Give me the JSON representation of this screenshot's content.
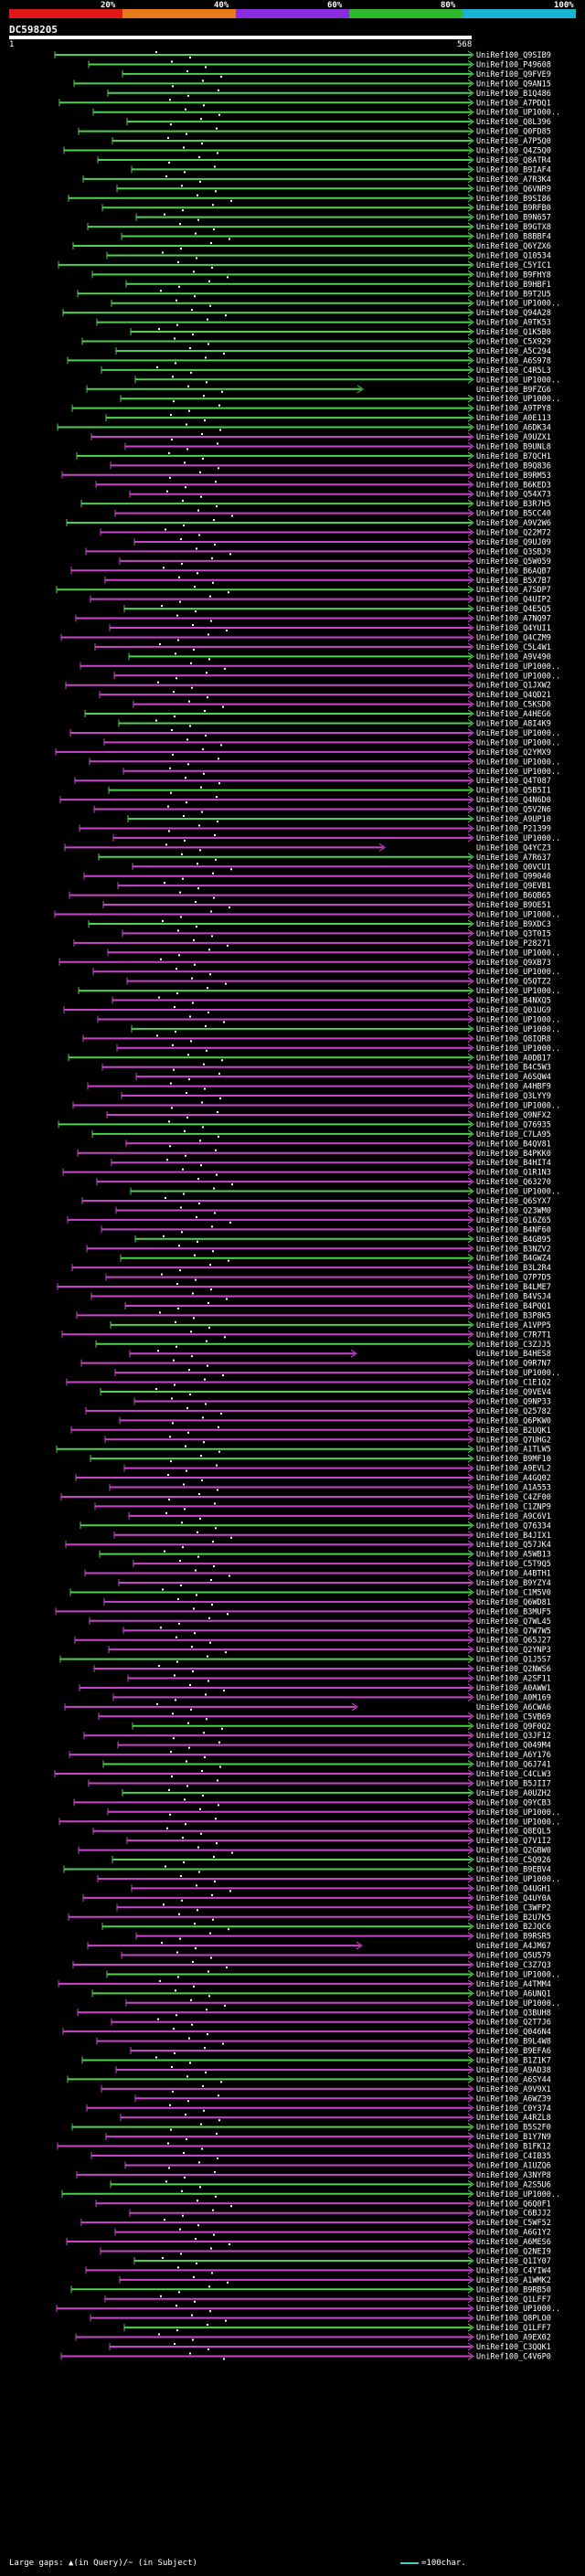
{
  "legend": {
    "colors": [
      "#e01818",
      "#e87a1a",
      "#8a2be2",
      "#2db82d",
      "#19b4d2"
    ],
    "labels": [
      "20%",
      "40%",
      "60%",
      "80%",
      "100%"
    ]
  },
  "query": {
    "name": "DC598205",
    "start": "1",
    "end": "568"
  },
  "footer": {
    "text": "Large gaps: ▲(in Query)/~ (in Subject)",
    "scale": "=100char."
  },
  "hits": [
    "UniRef100_Q9SIB9",
    "UniRef100_P49608",
    "UniRef100_Q9FVE9",
    "UniRef100_Q9AN15",
    "UniRef100_B1Q486",
    "UniRef100_A7PDQ1",
    "UniRef100_UP1000..",
    "UniRef100_Q8L396",
    "UniRef100_Q0FD85",
    "UniRef100_A7P5Q0",
    "UniRef100_Q4Z5Q0",
    "UniRef100_Q8ATR4",
    "UniRef100_B9IAF4",
    "UniRef100_A7R3K4",
    "UniRef100_Q6VNR9",
    "UniRef100_B9SI86",
    "UniRef100_B9RFB0",
    "UniRef100_B9N657",
    "UniRef100_B9GTX8",
    "UniRef100_B8BBF4",
    "UniRef100_Q6YZX6",
    "UniRef100_Q10534",
    "UniRef100_C5YIC1",
    "UniRef100_B9FHY8",
    "UniRef100_B9HBF1",
    "UniRef100_B9T2U5",
    "UniRef100_UP1000..",
    "UniRef100_Q94A28",
    "UniRef100_A9TK53",
    "UniRef100_Q1K5B0",
    "UniRef100_C5X929",
    "UniRef100_A5C294",
    "UniRef100_A6S978",
    "UniRef100_C4R5L3",
    "UniRef100_UP1000..",
    "UniRef100_B9FZG6",
    "UniRef100_UP1000..",
    "UniRef100_A9TPY8",
    "UniRef100_A0E113",
    "UniRef100_A6DK34",
    "UniRef100_A9UZX1",
    "UniRef100_B9UNL8",
    "UniRef100_B7QCH1",
    "UniRef100_B9Q836",
    "UniRef100_B9RM53",
    "UniRef100_B6KED3",
    "UniRef100_Q54X73",
    "UniRef100_B3R7H5",
    "UniRef100_B5CC40",
    "UniRef100_A9V2W6",
    "UniRef100_Q22M72",
    "UniRef100_Q9UJ09",
    "UniRef100_Q3SBJ9",
    "UniRef100_Q5W059",
    "UniRef100_B6AQB7",
    "UniRef100_B5X7B7",
    "UniRef100_A7SDP7",
    "UniRef100_Q4UIP2",
    "UniRef100_Q4E5Q5",
    "UniRef100_A7NQ97",
    "UniRef100_Q4YUI1",
    "UniRef100_Q4CZM9",
    "UniRef100_C5L4W1",
    "UniRef100_A9V490",
    "UniRef100_UP1000..",
    "UniRef100_UP1000..",
    "UniRef100_Q1JXW2",
    "UniRef100_Q4QD21",
    "UniRef100_C5KSD0",
    "UniRef100_A4HEG6",
    "UniRef100_A8I4K9",
    "UniRef100_UP1000..",
    "UniRef100_UP1000..",
    "UniRef100_Q2YMX9",
    "UniRef100_UP1000..",
    "UniRef100_UP1000..",
    "UniRef100_Q4T087",
    "UniRef100_Q5B5I1",
    "UniRef100_Q4N6D0",
    "UniRef100_Q5V2N6",
    "UniRef100_A9UP10",
    "UniRef100_P21399",
    "UniRef100_UP1000..",
    "UniRef100_Q4YCZ3",
    "UniRef100_A7R637",
    "UniRef100_Q0VCU1",
    "UniRef100_Q99040",
    "UniRef100_Q9EVB1",
    "UniRef100_B6QB65",
    "UniRef100_B9OE51",
    "UniRef100_UP1000..",
    "UniRef100_B9XDC3",
    "UniRef100_Q3T0I5",
    "UniRef100_P28271",
    "UniRef100_UP1000..",
    "UniRef100_Q9XB73",
    "UniRef100_UP1000..",
    "UniRef100_Q5QTZ2",
    "UniRef100_UP1000..",
    "UniRef100_B4NXQ5",
    "UniRef100_Q01UG9",
    "UniRef100_UP1000..",
    "UniRef100_UP1000..",
    "UniRef100_Q8IQR8",
    "UniRef100_UP1000..",
    "UniRef100_A0DB17",
    "UniRef100_B4C5W3",
    "UniRef100_A6SQW4",
    "UniRef100_A4HBF9",
    "UniRef100_Q3LYY9",
    "UniRef100_UP1000..",
    "UniRef100_Q9NFX2",
    "UniRef100_Q76935",
    "UniRef100_C7LA95",
    "UniRef100_B4QV81",
    "UniRef100_B4PKK0",
    "UniRef100_B4HIT4",
    "UniRef100_Q1R1N3",
    "UniRef100_Q63270",
    "UniRef100_UP1000..",
    "UniRef100_Q6SYX7",
    "UniRef100_Q23WM0",
    "UniRef100_Q16Z65",
    "UniRef100_B4NF60",
    "UniRef100_B4GB95",
    "UniRef100_B3NZV2",
    "UniRef100_B4GWZ4",
    "UniRef100_B3L2R4",
    "UniRef100_Q7P7D5",
    "UniRef100_B4LME7",
    "UniRef100_B4VSJ4",
    "UniRef100_B4PQQ1",
    "UniRef100_B3P8K5",
    "UniRef100_A1VPP5",
    "UniRef100_C7R7T1",
    "UniRef100_C3ZJJ5",
    "UniRef100_B4HES8",
    "UniRef100_Q9R7N7",
    "UniRef100_UP1000..",
    "UniRef100_C1E1Q2",
    "UniRef100_Q9VEV4",
    "UniRef100_Q9NP33",
    "UniRef100_Q25782",
    "UniRef100_Q6PKW0",
    "UniRef100_B2UQK1",
    "UniRef100_Q7UHG2",
    "UniRef100_A1TLW5",
    "UniRef100_B9MF10",
    "UniRef100_A9EVL2",
    "UniRef100_A4GQ02",
    "UniRef100_A1A553",
    "UniRef100_C4ZF00",
    "UniRef100_C1ZNP9",
    "UniRef100_A9C6V1",
    "UniRef100_Q76334",
    "UniRef100_B4JIX1",
    "UniRef100_Q57JK4",
    "UniRef100_A5WB13",
    "UniRef100_C5T9Q5",
    "UniRef100_A4BTH1",
    "UniRef100_B9YZY4",
    "UniRef100_C1M5V0",
    "UniRef100_Q6WD81",
    "UniRef100_B3MUF5",
    "UniRef100_Q7WL45",
    "UniRef100_Q7W7W5",
    "UniRef100_Q65J27",
    "UniRef100_Q2YNP3",
    "UniRef100_Q1J5S7",
    "UniRef100_Q2NWS6",
    "UniRef100_A2SF11",
    "UniRef100_A0AWW1",
    "UniRef100_A0M169",
    "UniRef100_A6CWA6",
    "UniRef100_C5VB69",
    "UniRef100_Q9F0Q2",
    "UniRef100_Q3JF12",
    "UniRef100_Q049M4",
    "UniRef100_A6Y176",
    "UniRef100_Q6J741",
    "UniRef100_C4CLW3",
    "UniRef100_B5JII7",
    "UniRef100_A0UZH2",
    "UniRef100_Q9YCB3",
    "UniRef100_UP1000..",
    "UniRef100_UP1000..",
    "UniRef100_Q8EQL5",
    "UniRef100_Q7V1I2",
    "UniRef100_Q2GBW0",
    "UniRef100_C5Q926",
    "UniRef100_B9EBV4",
    "UniRef100_UP1000..",
    "UniRef100_Q4UGH1",
    "UniRef100_Q4UY0A",
    "UniRef100_C3WFP2",
    "UniRef100_B2U7K5",
    "UniRef100_B2JQC6",
    "UniRef100_B9RSR5",
    "UniRef100_A4JM67",
    "UniRef100_Q5U579",
    "UniRef100_C3Z7Q3",
    "UniRef100_UP1000..",
    "UniRef100_A4TMM4",
    "UniRef100_A6UNQ1",
    "UniRef100_UP1000..",
    "UniRef100_Q3BUH8",
    "UniRef100_Q2T7J6",
    "UniRef100_Q046N4",
    "UniRef100_B9L4W8",
    "UniRef100_B9EFA6",
    "UniRef100_B1Z1K7",
    "UniRef100_A9AD38",
    "UniRef100_A6SY44",
    "UniRef100_A9V9X1",
    "UniRef100_A6WZ39",
    "UniRef100_C0Y374",
    "UniRef100_A4RZL8",
    "UniRef100_B5S2F0",
    "UniRef100_B1Y7N9",
    "UniRef100_B1FK12",
    "UniRef100_C4IB35",
    "UniRef100_A1UZQ6",
    "UniRef100_A3NYP8",
    "UniRef100_A2S5U6",
    "UniRef100_UP1000..",
    "UniRef100_Q6Q0F1",
    "UniRef100_C6BJJ2",
    "UniRef100_C5WF52",
    "UniRef100_A6G1Y2",
    "UniRef100_A6MES6",
    "UniRef100_Q2NEI9",
    "UniRef100_Q1IY07",
    "UniRef100_C4YIW4",
    "UniRef100_A1WMK2",
    "UniRef100_B9RB50",
    "UniRef100_Q1LFF7",
    "UniRef100_UP1000..",
    "UniRef100_Q8PLO0",
    "UniRef100_Q1LFF7",
    "UniRef100_A9EX02",
    "UniRef100_C3QQK1",
    "UniRef100_C4V6P0"
  ]
}
